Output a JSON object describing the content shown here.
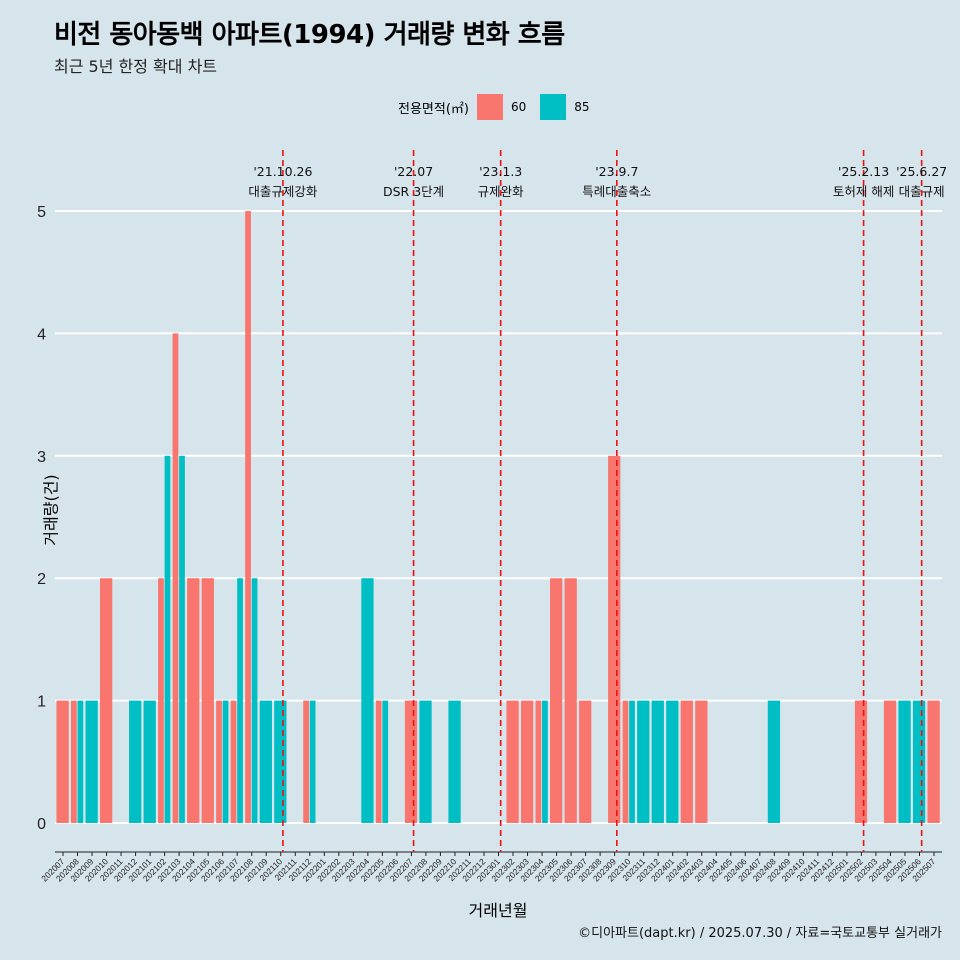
{
  "title": "비전 동아동백 아파트(1994) 거래량 변화 흐름",
  "subtitle": "최근 5년 한정 확대 차트",
  "legend": {
    "title": "전용면적(㎡)",
    "items": [
      {
        "label": "60",
        "color": "#f8766d"
      },
      {
        "label": "85",
        "color": "#00bfc4"
      }
    ]
  },
  "caption": "©디아파트(dapt.kr) / 2025.07.30 / 자료=국토교통부 실거래가",
  "chart_data": {
    "type": "bar",
    "xlabel": "거래년월",
    "ylabel": "거래량(건)",
    "ylim": [
      0,
      5
    ],
    "yticks": [
      0,
      1,
      2,
      3,
      4,
      5
    ],
    "grid": true,
    "categories": [
      "202007",
      "202008",
      "202009",
      "202010",
      "202011",
      "202012",
      "202101",
      "202102",
      "202103",
      "202104",
      "202105",
      "202106",
      "202107",
      "202108",
      "202109",
      "202110",
      "202111",
      "202112",
      "202201",
      "202202",
      "202203",
      "202204",
      "202205",
      "202206",
      "202207",
      "202208",
      "202209",
      "202210",
      "202211",
      "202212",
      "202301",
      "202302",
      "202303",
      "202304",
      "202305",
      "202306",
      "202307",
      "202308",
      "202309",
      "202310",
      "202311",
      "202312",
      "202401",
      "202402",
      "202403",
      "202404",
      "202405",
      "202406",
      "202407",
      "202408",
      "202409",
      "202410",
      "202411",
      "202412",
      "202501",
      "202502",
      "202503",
      "202504",
      "202505",
      "202506",
      "202507"
    ],
    "series": [
      {
        "name": "60",
        "color": "#f8766d",
        "values": [
          1,
          1,
          0,
          2,
          0,
          0,
          0,
          2,
          4,
          2,
          2,
          1,
          1,
          5,
          0,
          0,
          0,
          1,
          0,
          0,
          0,
          0,
          1,
          0,
          1,
          0,
          0,
          0,
          0,
          0,
          0,
          1,
          1,
          1,
          2,
          2,
          1,
          0,
          3,
          1,
          0,
          0,
          0,
          1,
          1,
          0,
          0,
          0,
          0,
          0,
          0,
          0,
          0,
          0,
          0,
          1,
          0,
          1,
          0,
          0,
          1
        ]
      },
      {
        "name": "85",
        "color": "#00bfc4",
        "values": [
          0,
          1,
          1,
          0,
          0,
          1,
          1,
          3,
          3,
          0,
          0,
          1,
          2,
          2,
          1,
          1,
          0,
          1,
          0,
          0,
          0,
          2,
          1,
          0,
          0,
          1,
          0,
          1,
          0,
          0,
          0,
          0,
          0,
          1,
          0,
          0,
          0,
          0,
          0,
          1,
          1,
          1,
          1,
          0,
          0,
          0,
          0,
          0,
          0,
          1,
          0,
          0,
          0,
          0,
          0,
          0,
          0,
          0,
          1,
          1,
          0
        ]
      }
    ],
    "annotations": [
      {
        "x": "202110",
        "date": "'21.10.26",
        "label": "대출규제강화"
      },
      {
        "x": "202207",
        "date": "'22.07",
        "label": "DSR 3단계"
      },
      {
        "x": "202301",
        "date": "'23.1.3",
        "label": "규제완화"
      },
      {
        "x": "202309",
        "date": "'23.9.7",
        "label": "특례대출축소"
      },
      {
        "x": "202502",
        "date": "'25.2.13",
        "label": "토허제 해제"
      },
      {
        "x": "202506",
        "date": "'25.6.27",
        "label": "대출규제"
      }
    ]
  }
}
